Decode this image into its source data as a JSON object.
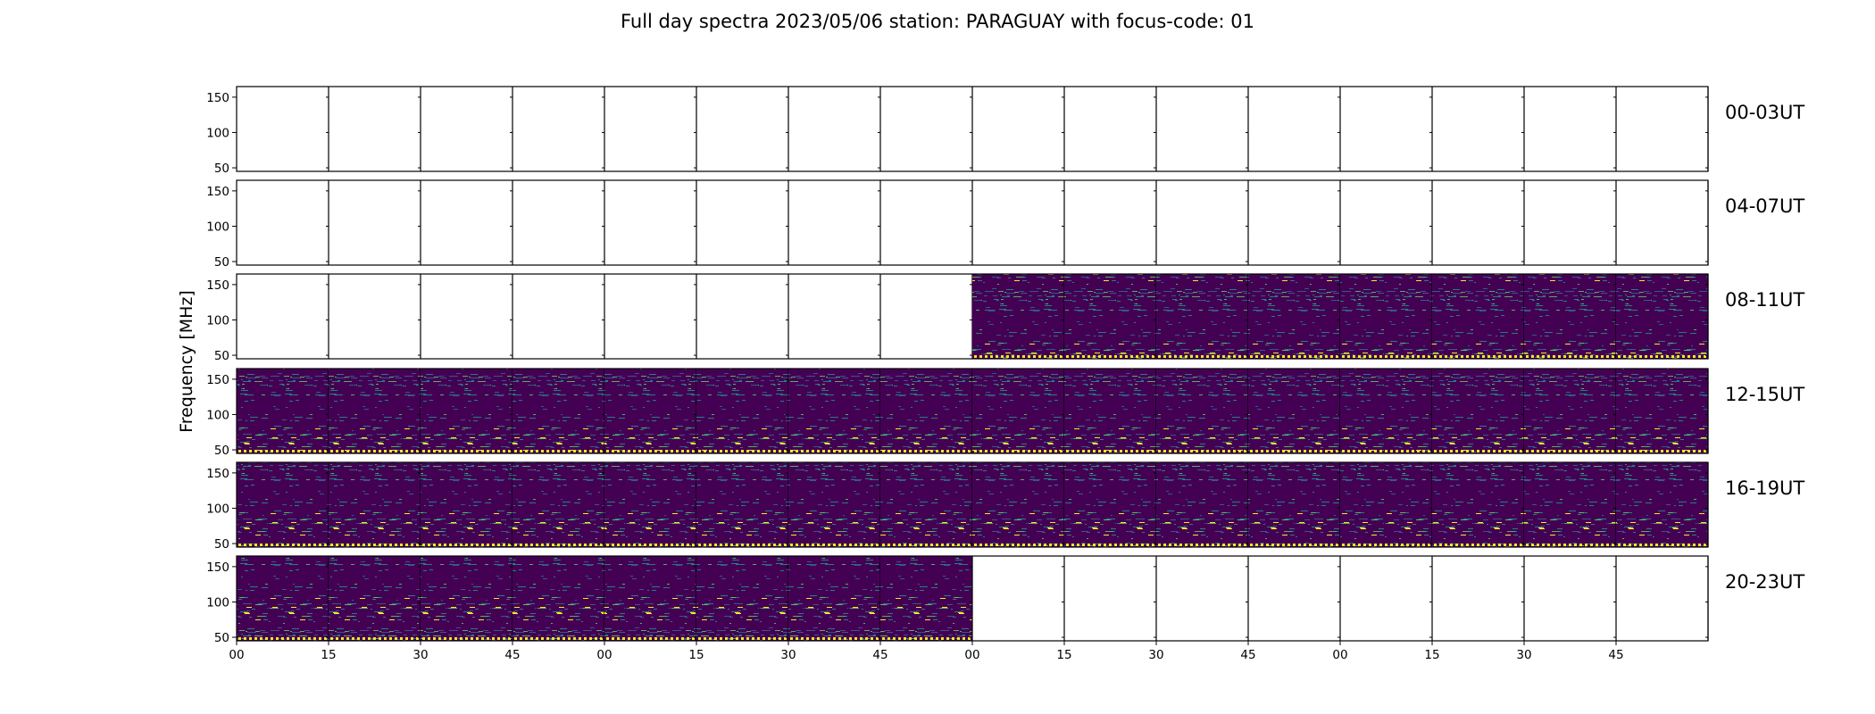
{
  "chart_data": {
    "type": "heatmap",
    "title": "Full day spectra 2023/05/06 station: PARAGUAY with focus-code: 01",
    "ylabel": "Frequency [MHz]",
    "yticks": [
      50,
      100,
      150
    ],
    "ylim": [
      45,
      165
    ],
    "x_tick_labels": [
      "00",
      "15",
      "30",
      "45",
      "00",
      "15",
      "30",
      "45",
      "00",
      "15",
      "30",
      "45",
      "00",
      "15",
      "30",
      "45"
    ],
    "colormap": "viridis",
    "colors": {
      "dark": "#440154",
      "mid": "#31688e",
      "teal": "#21918c",
      "green": "#5ec962",
      "yellow": "#fde725"
    },
    "rows": [
      {
        "label": "00-03UT",
        "data_panels": []
      },
      {
        "label": "04-07UT",
        "data_panels": []
      },
      {
        "label": "08-11UT",
        "data_panels": [
          8,
          9,
          10,
          11,
          12,
          13,
          14,
          15
        ]
      },
      {
        "label": "12-15UT",
        "data_panels": [
          0,
          1,
          2,
          3,
          4,
          5,
          6,
          7,
          8,
          9,
          10,
          11,
          12,
          13,
          14,
          15
        ]
      },
      {
        "label": "16-19UT",
        "data_panels": [
          0,
          1,
          2,
          3,
          4,
          5,
          6,
          7,
          8,
          9,
          10,
          11,
          12,
          13,
          14,
          15
        ]
      },
      {
        "label": "20-23UT",
        "data_panels": [
          0,
          1,
          2,
          3,
          4,
          5,
          6,
          7
        ]
      }
    ]
  }
}
